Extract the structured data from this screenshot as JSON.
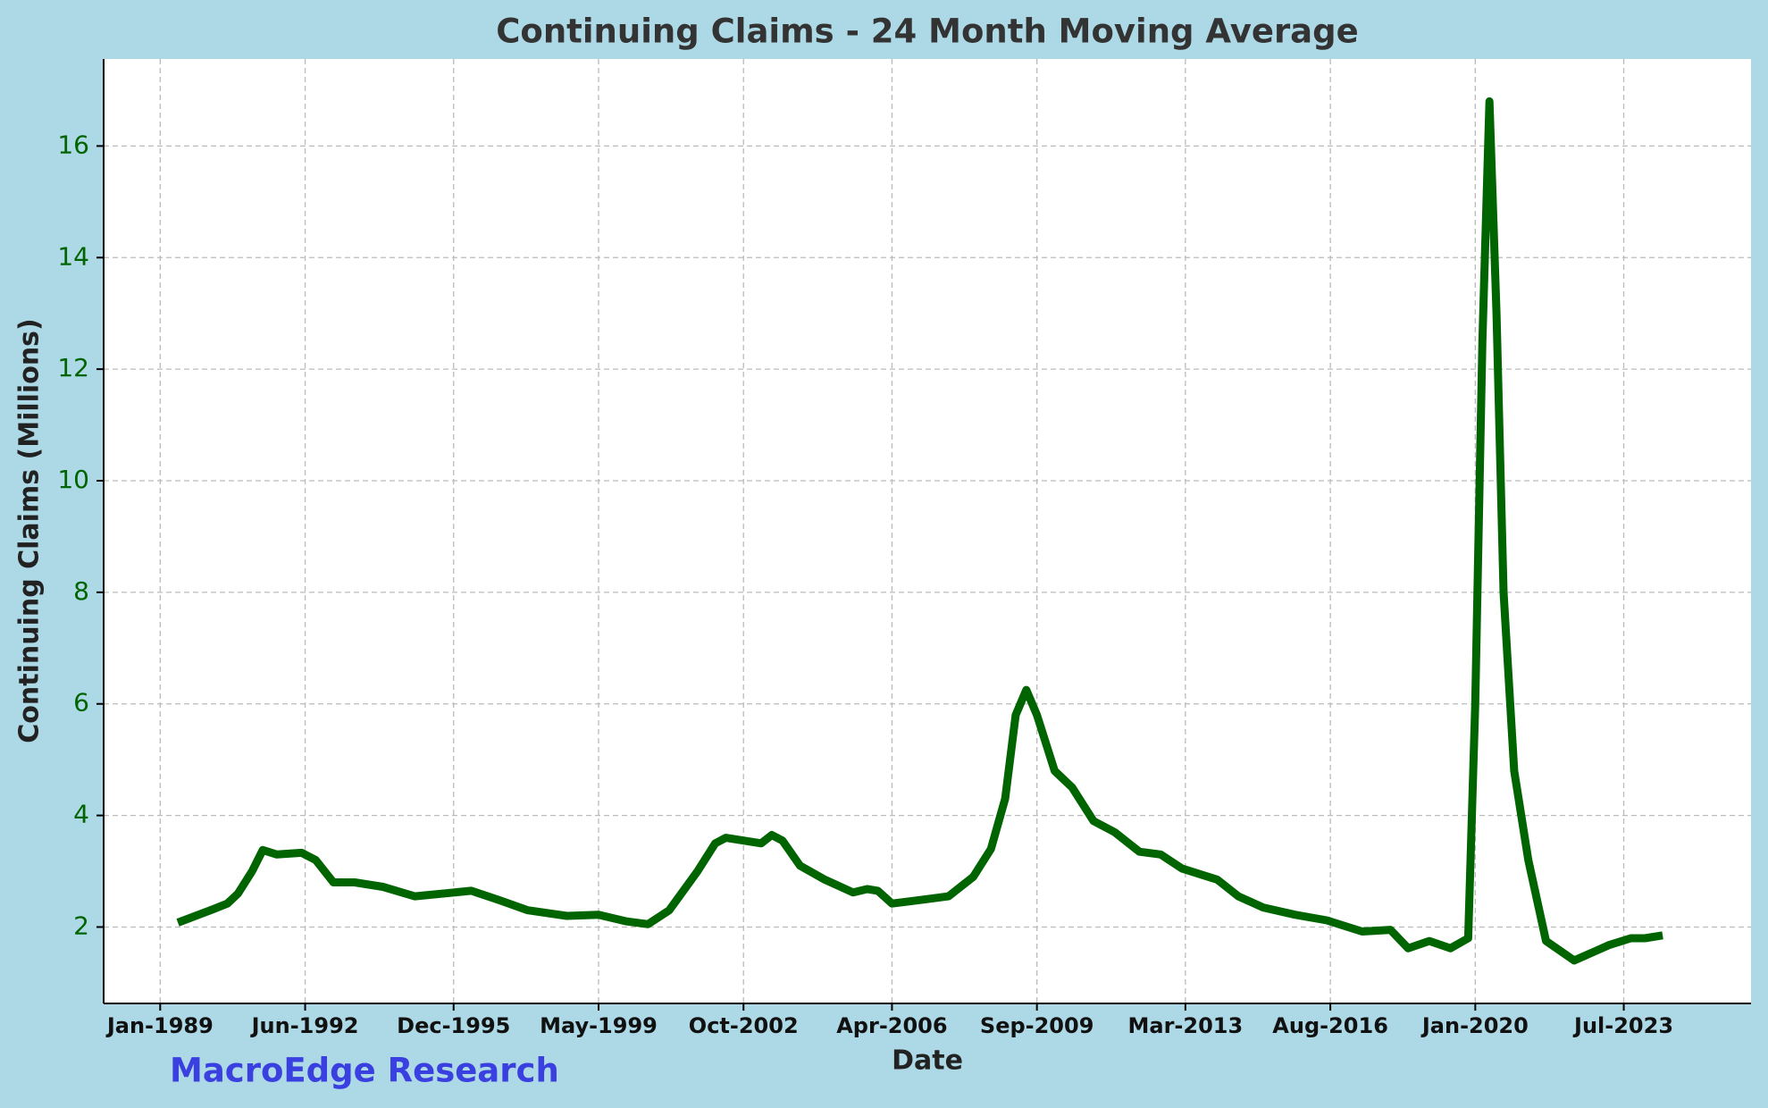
{
  "chart_data": {
    "type": "line",
    "title": "Continuing Claims - 24 Month Moving Average",
    "xlabel": "Date",
    "ylabel": "Continuing Claims (Millions)",
    "annotation": "MacroEdge Research",
    "x": [
      "1989-06",
      "1989-11",
      "1990-04",
      "1990-08",
      "1990-11",
      "1991-03",
      "1991-06",
      "1991-10",
      "1992-05",
      "1992-09",
      "1993-02",
      "1993-08",
      "1994-04",
      "1995-01",
      "1996-05",
      "1997-01",
      "1997-09",
      "1998-08",
      "1999-05",
      "2000-01",
      "2000-07",
      "2001-01",
      "2001-09",
      "2002-02",
      "2002-05",
      "2002-10",
      "2003-03",
      "2003-06",
      "2003-09",
      "2004-02",
      "2004-09",
      "2005-05",
      "2005-09",
      "2005-12",
      "2006-04",
      "2007-02",
      "2007-08",
      "2008-03",
      "2008-08",
      "2008-12",
      "2009-03",
      "2009-06",
      "2009-09",
      "2010-02",
      "2010-07",
      "2011-01",
      "2011-07",
      "2012-02",
      "2012-08",
      "2013-02",
      "2013-12",
      "2014-06",
      "2015-01",
      "2015-10",
      "2016-07",
      "2017-05",
      "2018-01",
      "2018-06",
      "2018-12",
      "2019-06",
      "2019-11",
      "2020-01",
      "2020-03",
      "2020-05",
      "2020-07",
      "2020-09",
      "2020-12",
      "2021-04",
      "2021-09",
      "2022-05",
      "2023-03",
      "2023-09",
      "2024-01",
      "2024-06"
    ],
    "series": [
      {
        "name": "Continuing Claims",
        "color": "#006400",
        "values": [
          2.08,
          2.2,
          2.32,
          2.42,
          2.6,
          3.0,
          3.38,
          3.3,
          3.33,
          3.2,
          2.8,
          2.8,
          2.72,
          2.55,
          2.65,
          2.48,
          2.3,
          2.2,
          2.22,
          2.1,
          2.05,
          2.3,
          3.0,
          3.5,
          3.6,
          3.55,
          3.5,
          3.65,
          3.55,
          3.1,
          2.85,
          2.62,
          2.68,
          2.65,
          2.42,
          2.5,
          2.55,
          2.9,
          3.4,
          4.3,
          5.8,
          6.25,
          5.8,
          4.8,
          4.5,
          3.9,
          3.7,
          3.35,
          3.3,
          3.05,
          2.85,
          2.55,
          2.35,
          2.22,
          2.12,
          1.92,
          1.95,
          1.62,
          1.75,
          1.62,
          1.8,
          6.0,
          12.5,
          16.8,
          13.0,
          8.0,
          4.8,
          3.2,
          1.75,
          1.4,
          1.68,
          1.8,
          1.8,
          1.85
        ]
      }
    ],
    "xlim": [
      "1987-09",
      "2026-07"
    ],
    "xticks": [
      {
        "value": "1989-01",
        "label": "Jan-1989"
      },
      {
        "value": "1992-06",
        "label": "Jun-1992"
      },
      {
        "value": "1995-12",
        "label": "Dec-1995"
      },
      {
        "value": "1999-05",
        "label": "May-1999"
      },
      {
        "value": "2002-10",
        "label": "Oct-2002"
      },
      {
        "value": "2006-04",
        "label": "Apr-2006"
      },
      {
        "value": "2009-09",
        "label": "Sep-2009"
      },
      {
        "value": "2013-03",
        "label": "Mar-2013"
      },
      {
        "value": "2016-08",
        "label": "Aug-2016"
      },
      {
        "value": "2020-01",
        "label": "Jan-2020"
      },
      {
        "value": "2023-07",
        "label": "Jul-2023"
      }
    ],
    "ylim": [
      0.63,
      17.56
    ],
    "yticks": [
      2,
      4,
      6,
      8,
      10,
      12,
      14,
      16
    ],
    "grid": true
  }
}
